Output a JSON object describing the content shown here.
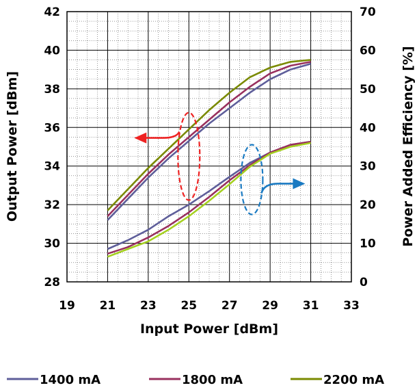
{
  "chart_data": {
    "type": "line",
    "title": "",
    "xlabel": "Input Power [dBm]",
    "ylabel": "Output Power [dBm]",
    "y2label": "Power Added Efficiency [%]",
    "xlim": [
      19,
      33
    ],
    "ylim": [
      28,
      42
    ],
    "y2lim": [
      0,
      70
    ],
    "x_ticks": [
      "19",
      "21",
      "23",
      "25",
      "27",
      "29",
      "31",
      "33"
    ],
    "y_ticks": [
      "28",
      "30",
      "32",
      "34",
      "36",
      "38",
      "40",
      "42"
    ],
    "y2_ticks": [
      "0",
      "10",
      "20",
      "30",
      "40",
      "50",
      "60",
      "70"
    ],
    "grid": true,
    "legend_position": "bottom",
    "x": [
      21,
      22,
      23,
      24,
      25,
      26,
      27,
      28,
      29,
      30,
      31
    ],
    "series": [
      {
        "name": "1400 mA",
        "group": "output",
        "axis": "left",
        "color": "#5e5e9a",
        "values": [
          31.2,
          32.3,
          33.4,
          34.4,
          35.3,
          36.2,
          37.0,
          37.8,
          38.5,
          39.0,
          39.3
        ]
      },
      {
        "name": "1800 mA",
        "group": "output",
        "axis": "left",
        "color": "#99305e",
        "values": [
          31.4,
          32.5,
          33.6,
          34.6,
          35.5,
          36.4,
          37.3,
          38.1,
          38.8,
          39.2,
          39.4
        ]
      },
      {
        "name": "2200 mA",
        "group": "output",
        "axis": "left",
        "color": "#7a8a00",
        "values": [
          31.7,
          32.8,
          33.9,
          34.9,
          35.9,
          36.9,
          37.8,
          38.6,
          39.1,
          39.4,
          39.5
        ]
      },
      {
        "name": "1400 mA",
        "group": "pae",
        "axis": "right",
        "color": "#5e5e9a",
        "values": [
          8.5,
          10.8,
          13.5,
          17.0,
          20.0,
          23.5,
          27.2,
          30.8,
          33.5,
          35.5,
          36.3
        ]
      },
      {
        "name": "1800 mA",
        "group": "pae",
        "axis": "right",
        "color": "#99305e",
        "values": [
          7.3,
          9.0,
          11.5,
          14.5,
          18.0,
          22.0,
          26.3,
          30.2,
          33.5,
          35.5,
          36.3
        ]
      },
      {
        "name": "2200 mA",
        "group": "pae",
        "axis": "right",
        "color": "#a5d020",
        "values": [
          6.5,
          8.5,
          10.5,
          13.5,
          17.0,
          21.0,
          25.3,
          29.8,
          33.2,
          35.0,
          36.0
        ]
      }
    ],
    "legend": [
      {
        "label": "1400 mA",
        "color": "#5e5e9a"
      },
      {
        "label": "1800 mA",
        "color": "#99305e"
      },
      {
        "label": "2200 mA",
        "color": "#7a8a00"
      }
    ],
    "annotations": [
      {
        "type": "ellipse-dashed",
        "color": "#ee2222",
        "center_x": 25.0,
        "center_y": 34.5,
        "points_to": "left axis"
      },
      {
        "type": "ellipse-dashed",
        "color": "#1a7ac2",
        "center_x": 28.1,
        "center_y": 33.3,
        "points_to": "right axis"
      }
    ]
  }
}
